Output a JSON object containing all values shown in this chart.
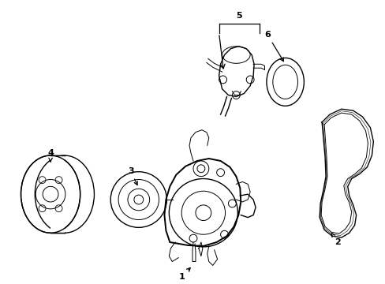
{
  "background_color": "#ffffff",
  "line_color": "#000000",
  "figsize": [
    4.89,
    3.6
  ],
  "dpi": 100,
  "lw_thin": 0.7,
  "lw_med": 1.0,
  "lw_thick": 1.4,
  "fontsize": 8
}
